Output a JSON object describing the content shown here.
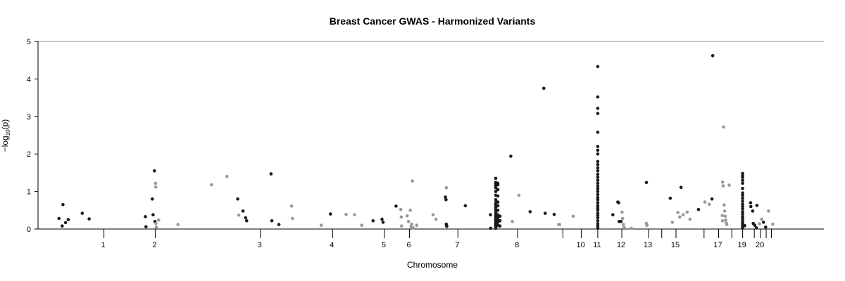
{
  "chart_data": {
    "type": "scatter",
    "title": "Breast Cancer GWAS - Harmonized Variants",
    "xlabel": "Chromosome",
    "ylabel": "−log",
    "ylabel_sub": "10",
    "ylabel_paren": "(p)",
    "ylim": [
      0,
      5
    ],
    "y_ticks": [
      0,
      1,
      2,
      3,
      4,
      5
    ],
    "xlim": [
      0,
      2850
    ],
    "colors": {
      "odd": "#1a1a1a",
      "even": "#999999",
      "axis": "#000000",
      "top_line": "#8c8c8c"
    },
    "chromosome_ticks": [
      {
        "label": "1",
        "pos": 180
      },
      {
        "label": "2",
        "pos": 374
      },
      {
        "label": "3",
        "pos": 772
      },
      {
        "label": "4",
        "pos": 1045
      },
      {
        "label": "5",
        "pos": 1241
      },
      {
        "label": "6",
        "pos": 1336
      },
      {
        "label": "7",
        "pos": 1519
      },
      {
        "label": "8",
        "pos": 1745
      },
      {
        "label": "10",
        "pos": 1986
      },
      {
        "label": "11",
        "pos": 2048
      },
      {
        "label": "12",
        "pos": 2139
      },
      {
        "label": "13",
        "pos": 2240
      },
      {
        "label": "15",
        "pos": 2344
      },
      {
        "label": "17",
        "pos": 2505
      },
      {
        "label": "19",
        "pos": 2596
      },
      {
        "label": "20",
        "pos": 2664
      }
    ],
    "minor_ticks": [
      180,
      374,
      772,
      1045,
      1241,
      1336,
      1519,
      1745,
      1916,
      1986,
      2048,
      2139,
      2240,
      2290,
      2344,
      2450,
      2505,
      2555,
      2596,
      2640,
      2664,
      2685,
      2705
    ],
    "series": [
      {
        "color_key": "odd",
        "points": [
          [
            10,
            0.28
          ],
          [
            22,
            0.08
          ],
          [
            25,
            0.65
          ],
          [
            35,
            0.17
          ],
          [
            45,
            0.25
          ],
          [
            98,
            0.42
          ],
          [
            124,
            0.27
          ],
          [
            337,
            0.33
          ],
          [
            339,
            0.06
          ],
          [
            363,
            0.8
          ],
          [
            366,
            0.38
          ],
          [
            371,
            1.55
          ],
          [
            373,
            0.2
          ],
          [
            686,
            0.8
          ],
          [
            706,
            0.48
          ],
          [
            716,
            0.3
          ],
          [
            720,
            0.22
          ],
          [
            812,
            1.47
          ],
          [
            815,
            0.22
          ],
          [
            842,
            0.12
          ],
          [
            1037,
            0.4
          ],
          [
            1198,
            0.22
          ],
          [
            1232,
            0.26
          ],
          [
            1236,
            0.18
          ],
          [
            1285,
            0.61
          ],
          [
            1472,
            0.85
          ],
          [
            1474,
            0.78
          ],
          [
            1475,
            0.13
          ],
          [
            1476,
            0.1
          ],
          [
            1477,
            0.07
          ],
          [
            1547,
            0.62
          ],
          [
            1642,
            0.38
          ],
          [
            1643,
            0.02
          ],
          [
            1719,
            1.94
          ],
          [
            1792,
            0.46
          ],
          [
            1844,
            3.75
          ],
          [
            1849,
            0.42
          ],
          [
            1883,
            0.39
          ],
          [
            2048,
            0.02
          ],
          [
            2048,
            0.08
          ],
          [
            2048,
            0.14
          ],
          [
            2048,
            0.22
          ],
          [
            2048,
            0.3
          ],
          [
            2048,
            0.36
          ],
          [
            2048,
            0.42
          ],
          [
            2048,
            0.5
          ],
          [
            2048,
            0.56
          ],
          [
            2048,
            0.62
          ],
          [
            2048,
            0.7
          ],
          [
            2048,
            0.78
          ],
          [
            2048,
            0.84
          ],
          [
            2048,
            0.92
          ],
          [
            2048,
            1.0
          ],
          [
            2048,
            1.07
          ],
          [
            2048,
            1.14
          ],
          [
            2048,
            1.22
          ],
          [
            2048,
            1.3
          ],
          [
            2048,
            1.38
          ],
          [
            2048,
            1.46
          ],
          [
            2048,
            1.55
          ],
          [
            2048,
            1.63
          ],
          [
            2048,
            1.72
          ],
          [
            2048,
            1.8
          ],
          [
            2048,
            2.0
          ],
          [
            2048,
            2.1
          ],
          [
            2048,
            2.2
          ],
          [
            2048,
            2.58
          ],
          [
            2048,
            3.08
          ],
          [
            2048,
            3.22
          ],
          [
            2048,
            3.52
          ],
          [
            2048,
            4.33
          ],
          [
            2105,
            0.38
          ],
          [
            2124,
            0.72
          ],
          [
            2127,
            0.7
          ],
          [
            2129,
            0.2
          ],
          [
            2136,
            0.2
          ],
          [
            2232,
            1.24
          ],
          [
            2322,
            0.82
          ],
          [
            2363,
            1.11
          ],
          [
            2429,
            0.52
          ],
          [
            2480,
            0.8
          ],
          [
            2483,
            4.62
          ],
          [
            2596,
            0.02
          ],
          [
            2596,
            0.06
          ],
          [
            2596,
            0.1
          ],
          [
            2596,
            0.14
          ],
          [
            2596,
            0.18
          ],
          [
            2596,
            0.23
          ],
          [
            2596,
            0.28
          ],
          [
            2596,
            0.33
          ],
          [
            2596,
            0.4
          ],
          [
            2596,
            0.46
          ],
          [
            2596,
            0.54
          ],
          [
            2596,
            0.6
          ],
          [
            2596,
            0.66
          ],
          [
            2596,
            0.74
          ],
          [
            2596,
            0.82
          ],
          [
            2596,
            0.9
          ],
          [
            2596,
            0.96
          ],
          [
            2596,
            1.08
          ],
          [
            2596,
            1.22
          ],
          [
            2596,
            1.3
          ],
          [
            2596,
            1.38
          ],
          [
            2596,
            1.42
          ],
          [
            2596,
            1.48
          ],
          [
            2604,
            0.09
          ],
          [
            2626,
            0.7
          ],
          [
            2627,
            0.6
          ],
          [
            2634,
            0.48
          ],
          [
            2636,
            0.15
          ],
          [
            2642,
            0.1
          ],
          [
            2648,
            0.03
          ],
          [
            2650,
            0.63
          ],
          [
            2675,
            0.18
          ],
          [
            2683,
            0.05
          ],
          [
            1662,
            0.02
          ],
          [
            1662,
            0.05
          ],
          [
            1662,
            0.08
          ],
          [
            1662,
            0.11
          ],
          [
            1662,
            0.14
          ],
          [
            1662,
            0.18
          ],
          [
            1662,
            0.22
          ],
          [
            1662,
            0.26
          ],
          [
            1662,
            0.3
          ],
          [
            1662,
            0.34
          ],
          [
            1662,
            0.39
          ],
          [
            1662,
            0.45
          ],
          [
            1662,
            0.52
          ],
          [
            1662,
            0.58
          ],
          [
            1662,
            0.64
          ],
          [
            1662,
            0.7
          ],
          [
            1662,
            0.78
          ],
          [
            1662,
            0.9
          ],
          [
            1662,
            1.0
          ],
          [
            1662,
            1.1
          ],
          [
            1662,
            1.15
          ],
          [
            1662,
            1.2
          ],
          [
            1662,
            1.24
          ],
          [
            1662,
            1.35
          ],
          [
            1670,
            0.1
          ],
          [
            1670,
            0.18
          ],
          [
            1670,
            0.26
          ],
          [
            1670,
            0.33
          ],
          [
            1670,
            0.38
          ],
          [
            1670,
            0.5
          ],
          [
            1670,
            0.62
          ],
          [
            1670,
            0.72
          ],
          [
            1670,
            0.88
          ],
          [
            1670,
            1.05
          ],
          [
            1670,
            1.18
          ],
          [
            1670,
            1.22
          ],
          [
            1678,
            0.08
          ],
          [
            1678,
            0.22
          ],
          [
            1678,
            0.34
          ]
        ]
      },
      {
        "color_key": "even",
        "points": [
          [
            375,
            1.22
          ],
          [
            376,
            1.12
          ],
          [
            377,
            0.15
          ],
          [
            378,
            0.05
          ],
          [
            387,
            0.24
          ],
          [
            460,
            0.12
          ],
          [
            587,
            1.18
          ],
          [
            645,
            1.4
          ],
          [
            690,
            0.37
          ],
          [
            890,
            0.61
          ],
          [
            893,
            0.28
          ],
          [
            1002,
            0.1
          ],
          [
            1096,
            0.39
          ],
          [
            1128,
            0.38
          ],
          [
            1155,
            0.1
          ],
          [
            1303,
            0.52
          ],
          [
            1305,
            0.32
          ],
          [
            1306,
            0.08
          ],
          [
            1327,
            0.35
          ],
          [
            1332,
            0.2
          ],
          [
            1339,
            0.5
          ],
          [
            1342,
            0.06
          ],
          [
            1344,
            0.13
          ],
          [
            1347,
            1.28
          ],
          [
            1350,
            0.03
          ],
          [
            1363,
            0.1
          ],
          [
            1425,
            0.38
          ],
          [
            1436,
            0.26
          ],
          [
            1475,
            1.1
          ],
          [
            1725,
            0.2
          ],
          [
            1750,
            0.9
          ],
          [
            1900,
            0.12
          ],
          [
            1904,
            0.12
          ],
          [
            1955,
            0.34
          ],
          [
            2140,
            0.45
          ],
          [
            2142,
            0.28
          ],
          [
            2145,
            0.12
          ],
          [
            2148,
            0.04
          ],
          [
            2175,
            0.02
          ],
          [
            2232,
            0.15
          ],
          [
            2234,
            0.1
          ],
          [
            2330,
            0.18
          ],
          [
            2351,
            0.44
          ],
          [
            2358,
            0.32
          ],
          [
            2371,
            0.38
          ],
          [
            2386,
            0.45
          ],
          [
            2397,
            0.26
          ],
          [
            2453,
            0.72
          ],
          [
            2470,
            0.66
          ],
          [
            2520,
            1.25
          ],
          [
            2522,
            1.15
          ],
          [
            2524,
            2.72
          ],
          [
            2526,
            0.64
          ],
          [
            2528,
            0.48
          ],
          [
            2530,
            0.34
          ],
          [
            2532,
            0.24
          ],
          [
            2534,
            0.16
          ],
          [
            2536,
            0.12
          ],
          [
            2545,
            1.17
          ],
          [
            2660,
            0.14
          ],
          [
            2668,
            0.26
          ],
          [
            2694,
            0.48
          ],
          [
            2710,
            0.13
          ],
          [
            2519,
            0.36
          ],
          [
            2520,
            0.22
          ]
        ]
      }
    ]
  }
}
